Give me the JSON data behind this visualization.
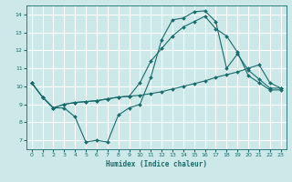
{
  "xlabel": "Humidex (Indice chaleur)",
  "bg_color": "#cce8e8",
  "grid_color": "#ffffff",
  "line_color": "#1a6b6b",
  "xlim": [
    -0.5,
    23.5
  ],
  "ylim": [
    6.5,
    14.5
  ],
  "xticks": [
    0,
    1,
    2,
    3,
    4,
    5,
    6,
    7,
    8,
    9,
    10,
    11,
    12,
    13,
    14,
    15,
    16,
    17,
    18,
    19,
    20,
    21,
    22,
    23
  ],
  "yticks": [
    7,
    8,
    9,
    10,
    11,
    12,
    13,
    14
  ],
  "line1_x": [
    0,
    1,
    2,
    3,
    4,
    5,
    6,
    7,
    8,
    9,
    10,
    11,
    12,
    13,
    14,
    15,
    16,
    17,
    18,
    19,
    20,
    21,
    22,
    23
  ],
  "line1_y": [
    10.2,
    9.4,
    8.8,
    8.8,
    8.3,
    6.9,
    7.0,
    6.9,
    8.4,
    8.8,
    9.0,
    10.5,
    12.6,
    13.7,
    13.8,
    14.15,
    14.2,
    13.6,
    11.0,
    11.8,
    10.9,
    10.4,
    9.9,
    9.9
  ],
  "line2_x": [
    0,
    1,
    2,
    3,
    4,
    5,
    6,
    7,
    8,
    9,
    10,
    11,
    12,
    13,
    14,
    15,
    16,
    17,
    18,
    19,
    20,
    21,
    22,
    23
  ],
  "line2_y": [
    10.2,
    9.4,
    8.8,
    9.0,
    9.1,
    9.15,
    9.2,
    9.3,
    9.4,
    9.45,
    9.5,
    9.6,
    9.7,
    9.85,
    10.0,
    10.15,
    10.3,
    10.5,
    10.65,
    10.8,
    11.0,
    11.2,
    10.2,
    9.9
  ],
  "line3_x": [
    0,
    1,
    2,
    3,
    4,
    5,
    6,
    7,
    8,
    9,
    10,
    11,
    12,
    13,
    14,
    15,
    16,
    17,
    18,
    19,
    20,
    21,
    22,
    23
  ],
  "line3_y": [
    10.2,
    9.4,
    8.8,
    9.0,
    9.1,
    9.15,
    9.2,
    9.3,
    9.4,
    9.45,
    10.2,
    11.4,
    12.1,
    12.8,
    13.3,
    13.6,
    13.9,
    13.2,
    12.8,
    11.9,
    10.6,
    10.2,
    9.8,
    9.8
  ]
}
